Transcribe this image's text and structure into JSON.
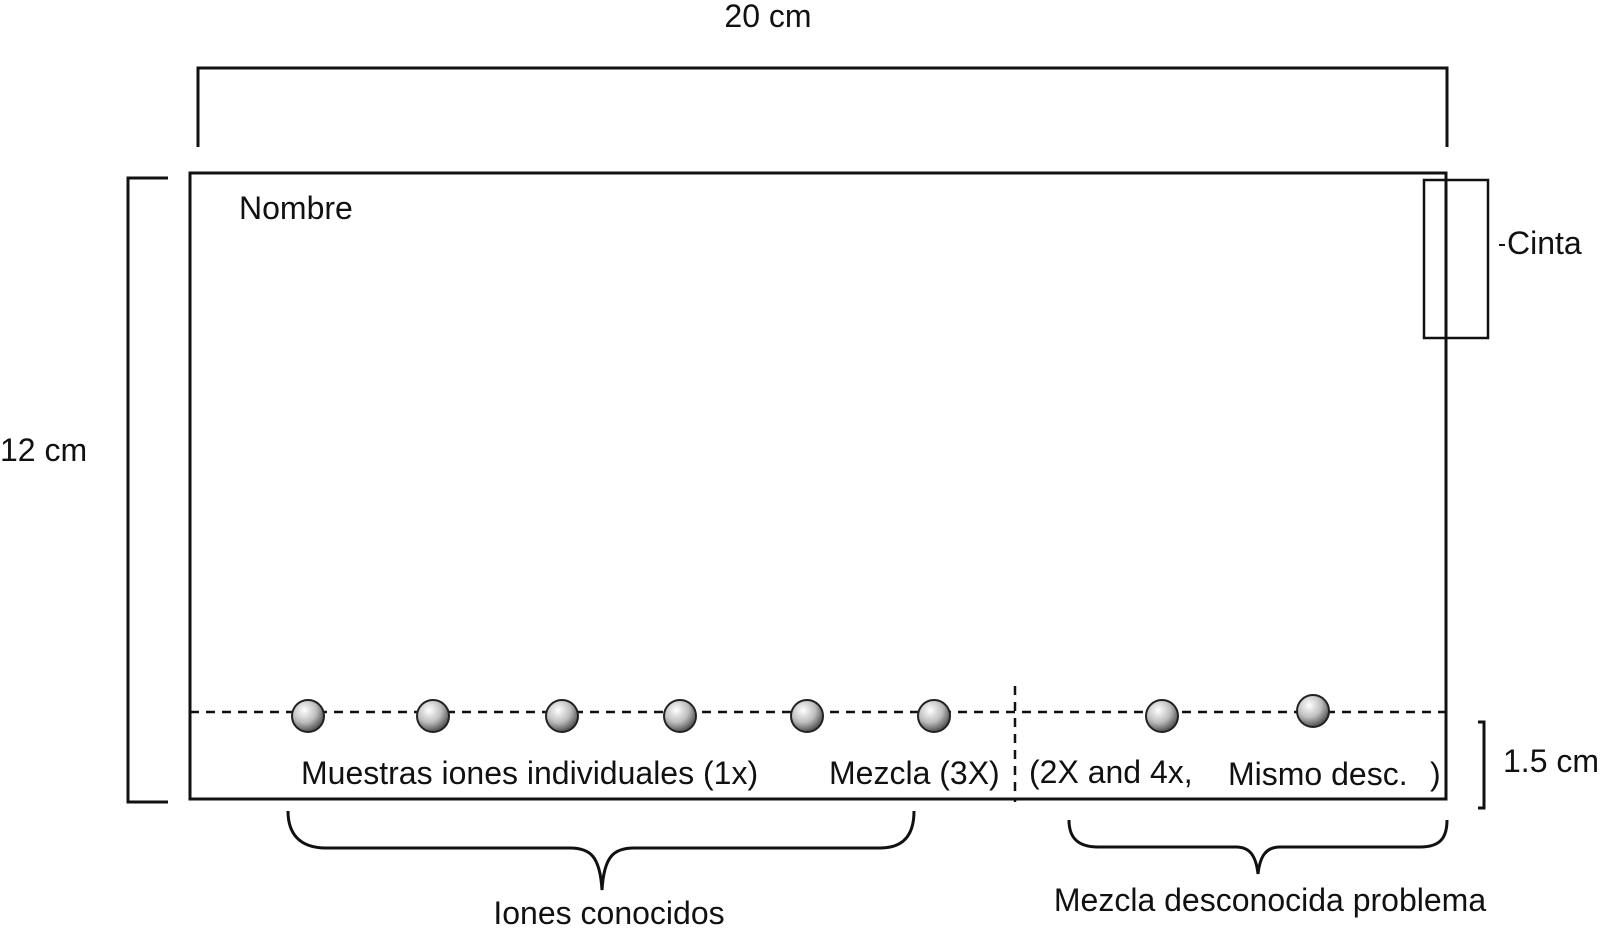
{
  "labels": {
    "width": "20 cm",
    "height": "12 cm",
    "name": "Nombre",
    "tape": "Cinta",
    "origin_height": "1.5 cm",
    "samples_individual": "Muestras iones individuales (1x)",
    "samples_mix": "Mezcla (3X)",
    "unknown_note_a": "(2X and 4x,",
    "unknown_note_b": "Mismo desc.",
    "unknown_note_c": ")",
    "group_known": "Iones conocidos",
    "group_unknown": "Mezcla desconocida problema"
  },
  "colors": {
    "stroke": "#111111",
    "spot_light": "#ffffff",
    "spot_dark": "#4a4a4a"
  }
}
